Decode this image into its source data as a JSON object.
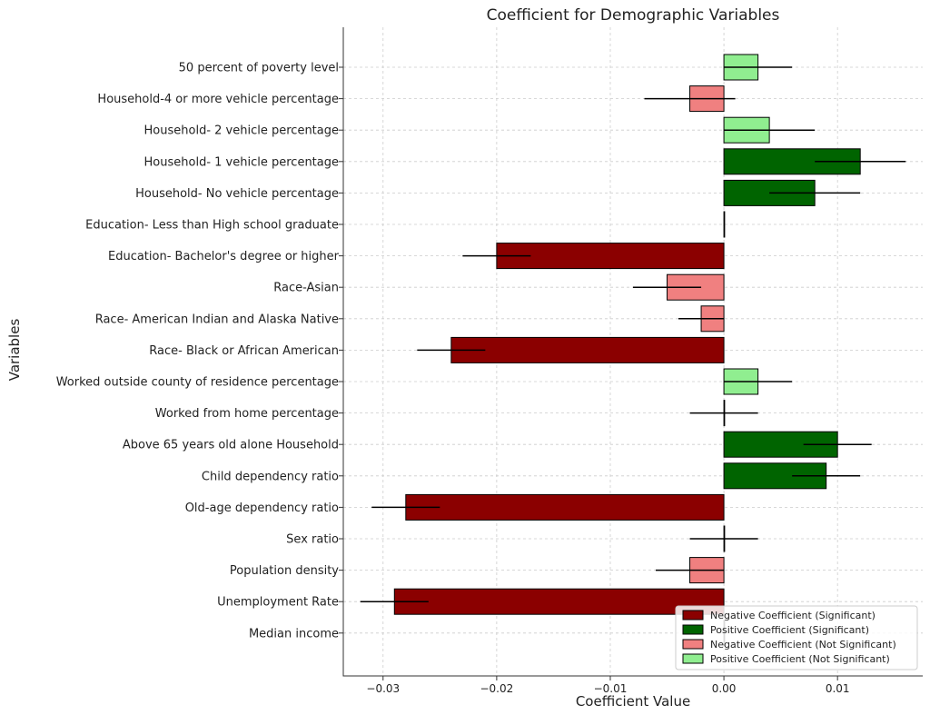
{
  "chart_data": {
    "type": "bar",
    "orientation": "horizontal",
    "title": "Coefficient for Demographic Variables",
    "xlabel": "Coefficient Value",
    "ylabel": "Variables",
    "xlim": [
      -0.0335,
      0.0175
    ],
    "xticks": [
      -0.03,
      -0.02,
      -0.01,
      0.0,
      0.01
    ],
    "xtick_labels": [
      "−0.03",
      "−0.02",
      "−0.01",
      "0.00",
      "0.01"
    ],
    "grid": true,
    "legend_position": "bottom-right",
    "colors": {
      "neg_sig": "#8b0000",
      "pos_sig": "#006400",
      "neg_nsig": "#f08080",
      "pos_nsig": "#90ee90"
    },
    "legend": [
      {
        "label": "Negative Coefficient (Significant)",
        "color_key": "neg_sig"
      },
      {
        "label": "Positive Coefficient (Significant)",
        "color_key": "pos_sig"
      },
      {
        "label": "Negative Coefficient (Not Significant)",
        "color_key": "neg_nsig"
      },
      {
        "label": "Positive Coefficient (Not Significant)",
        "color_key": "pos_nsig"
      }
    ],
    "bars": [
      {
        "label": "50 percent of poverty level",
        "value": 0.003,
        "err_low": 0.0,
        "err_high": 0.006,
        "class": "pos_nsig"
      },
      {
        "label": "Household-4 or more vehicle percentage",
        "value": -0.003,
        "err_low": -0.007,
        "err_high": 0.001,
        "class": "neg_nsig"
      },
      {
        "label": "Household- 2 vehicle percentage",
        "value": 0.004,
        "err_low": 0.0,
        "err_high": 0.008,
        "class": "pos_nsig"
      },
      {
        "label": "Household- 1 vehicle percentage",
        "value": 0.012,
        "err_low": 0.008,
        "err_high": 0.016,
        "class": "pos_sig"
      },
      {
        "label": "Household- No vehicle percentage",
        "value": 0.008,
        "err_low": 0.004,
        "err_high": 0.012,
        "class": "pos_sig"
      },
      {
        "label": "Education- Less than High school graduate",
        "value": 0.0,
        "err_low": 0.0,
        "err_high": 0.0,
        "class": "pos_nsig"
      },
      {
        "label": "Education- Bachelor's degree or higher",
        "value": -0.02,
        "err_low": -0.023,
        "err_high": -0.017,
        "class": "neg_sig"
      },
      {
        "label": "Race-Asian",
        "value": -0.005,
        "err_low": -0.008,
        "err_high": -0.002,
        "class": "neg_nsig"
      },
      {
        "label": "Race- American Indian and Alaska Native",
        "value": -0.002,
        "err_low": -0.004,
        "err_high": 0.0,
        "class": "neg_nsig"
      },
      {
        "label": "Race- Black or African American",
        "value": -0.024,
        "err_low": -0.027,
        "err_high": -0.021,
        "class": "neg_sig"
      },
      {
        "label": "Worked outside county of residence percentage",
        "value": 0.003,
        "err_low": 0.0,
        "err_high": 0.006,
        "class": "pos_nsig"
      },
      {
        "label": "Worked from home percentage",
        "value": 0.0,
        "err_low": -0.003,
        "err_high": 0.003,
        "class": "pos_nsig"
      },
      {
        "label": "Above 65 years old alone Household",
        "value": 0.01,
        "err_low": 0.007,
        "err_high": 0.013,
        "class": "pos_sig"
      },
      {
        "label": "Child dependency ratio",
        "value": 0.009,
        "err_low": 0.006,
        "err_high": 0.012,
        "class": "pos_sig"
      },
      {
        "label": "Old-age dependency ratio",
        "value": -0.028,
        "err_low": -0.031,
        "err_high": -0.025,
        "class": "neg_sig"
      },
      {
        "label": "Sex ratio",
        "value": 0.0,
        "err_low": -0.003,
        "err_high": 0.003,
        "class": "pos_nsig"
      },
      {
        "label": "Population density",
        "value": -0.003,
        "err_low": -0.006,
        "err_high": 0.0,
        "class": "neg_nsig"
      },
      {
        "label": "Unemployment Rate",
        "value": -0.029,
        "err_low": -0.032,
        "err_high": -0.026,
        "class": "neg_sig"
      },
      {
        "label": "Median income",
        "value": 0.0,
        "err_low": 0.0,
        "err_high": 0.0,
        "class": "pos_nsig"
      }
    ]
  }
}
